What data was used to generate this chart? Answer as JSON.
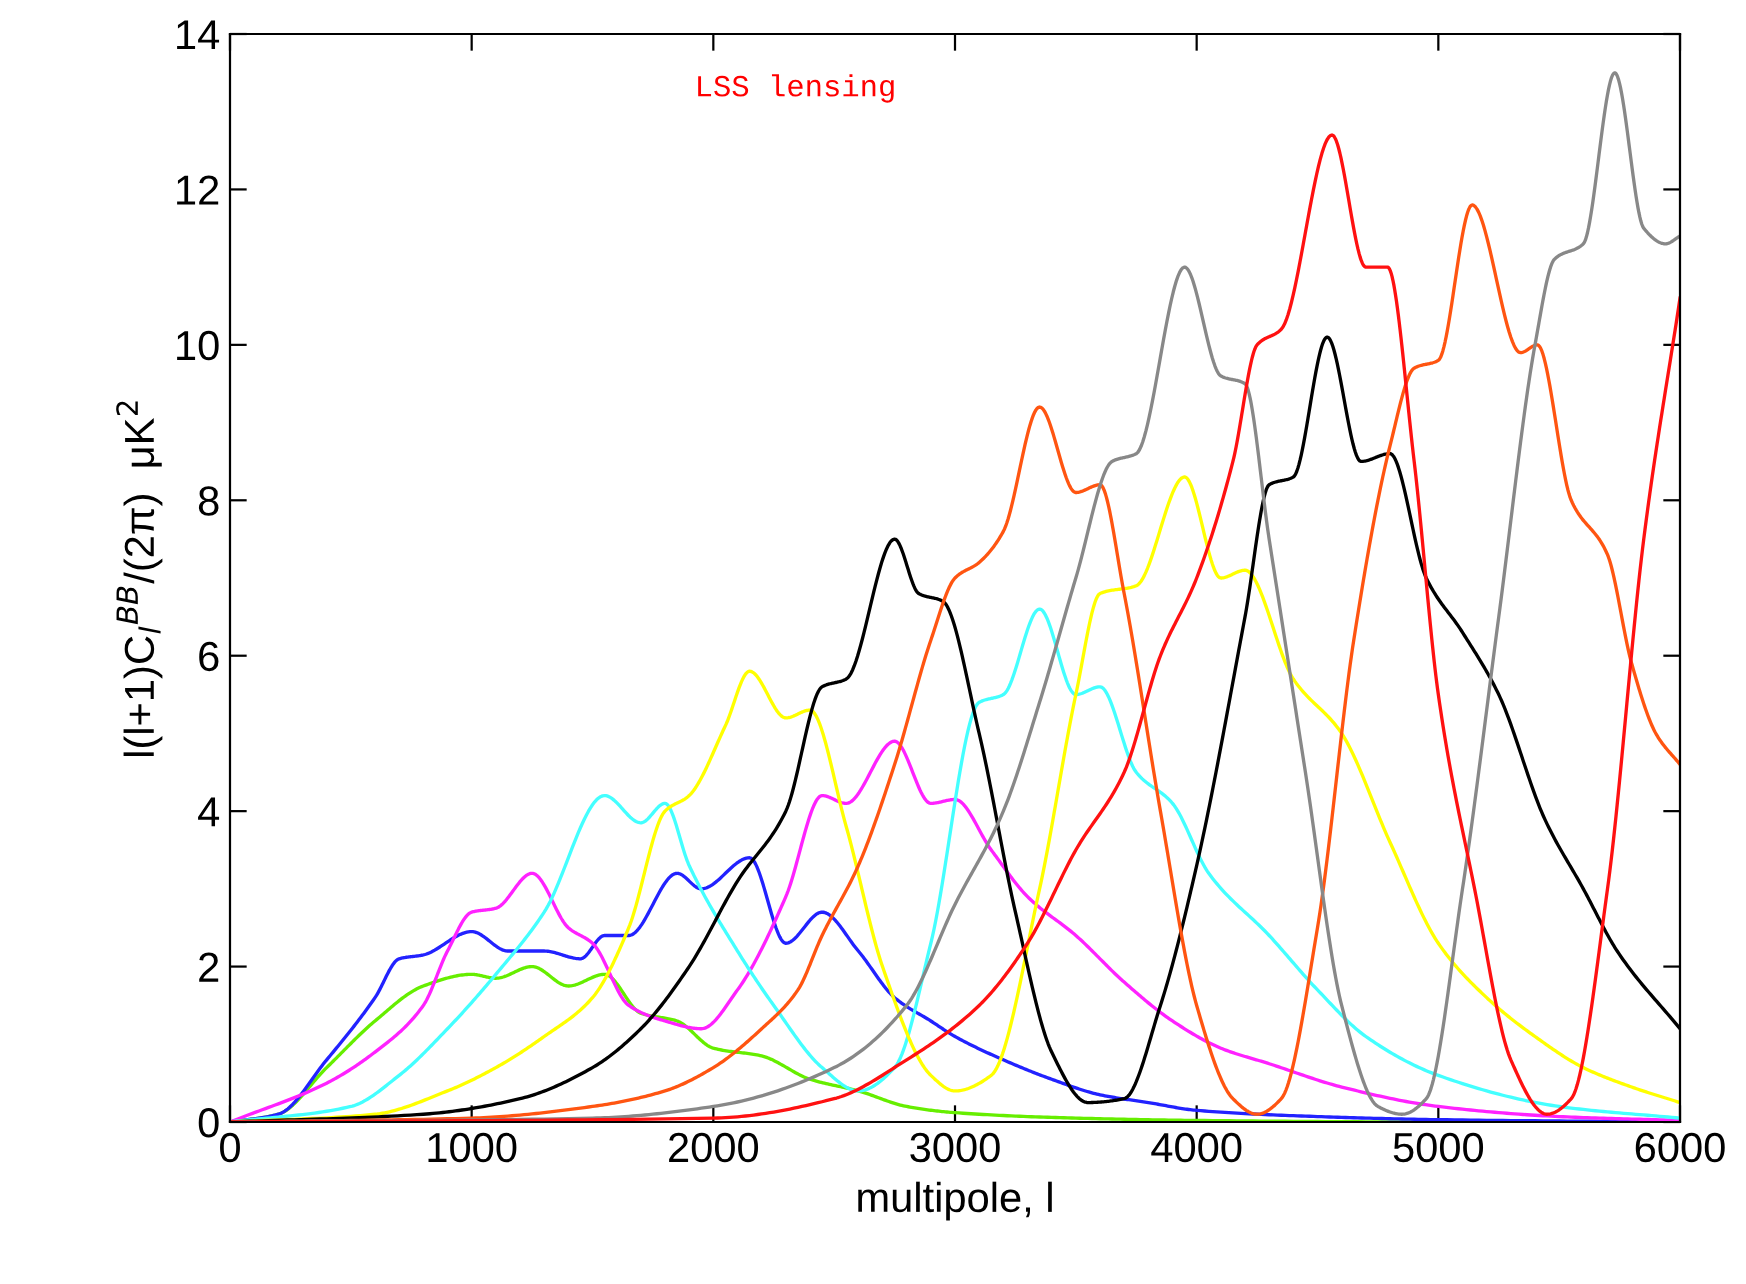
{
  "chart_data": {
    "type": "line",
    "xlabel": "multipole, l",
    "ylabel": "l(l+1)C$_{l}$$^{BB}$/(2π)  μK$^{2}$",
    "annotations": [
      "LSS lensing"
    ],
    "xlim": [
      0,
      6000
    ],
    "ylim": [
      0,
      14
    ],
    "xticks": [
      0,
      1000,
      2000,
      3000,
      4000,
      5000,
      6000
    ],
    "yticks": [
      0,
      2,
      4,
      6,
      8,
      10,
      12,
      14
    ],
    "grid": false,
    "legend": false,
    "series": [
      {
        "color": "#66ee00",
        "x": [
          0,
          200,
          400,
          600,
          800,
          1000,
          1100,
          1250,
          1400,
          1550,
          1700,
          1850,
          2000,
          2200,
          2400,
          2600,
          2800,
          3000,
          3500,
          4000,
          5000,
          6000
        ],
        "values": [
          0,
          0.1,
          0.7,
          1.3,
          1.75,
          1.9,
          1.85,
          2.0,
          1.75,
          1.9,
          1.4,
          1.3,
          0.95,
          0.85,
          0.55,
          0.4,
          0.2,
          0.12,
          0.05,
          0.02,
          0,
          0
        ]
      },
      {
        "color": "#2222ff",
        "x": [
          0,
          200,
          400,
          600,
          700,
          800,
          1000,
          1150,
          1300,
          1450,
          1550,
          1650,
          1850,
          1950,
          2150,
          2300,
          2450,
          2600,
          2750,
          2900,
          3000,
          3200,
          3400,
          3600,
          3800,
          4000,
          4500,
          5000,
          6000
        ],
        "values": [
          0,
          0.1,
          0.8,
          1.6,
          2.1,
          2.15,
          2.45,
          2.2,
          2.2,
          2.1,
          2.4,
          2.4,
          3.2,
          3.0,
          3.4,
          2.3,
          2.7,
          2.2,
          1.6,
          1.3,
          1.1,
          0.8,
          0.55,
          0.35,
          0.25,
          0.15,
          0.07,
          0.03,
          0
        ]
      },
      {
        "color": "#ff22ff",
        "x": [
          0,
          400,
          600,
          800,
          900,
          1000,
          1100,
          1250,
          1400,
          1500,
          1650,
          1800,
          1950,
          2100,
          2300,
          2450,
          2550,
          2750,
          2900,
          3000,
          3150,
          3300,
          3500,
          3700,
          3900,
          4100,
          4300,
          4600,
          5000,
          5500,
          6000
        ],
        "values": [
          0,
          0.5,
          0.9,
          1.5,
          2.2,
          2.7,
          2.75,
          3.2,
          2.5,
          2.3,
          1.5,
          1.3,
          1.2,
          1.7,
          2.9,
          4.2,
          4.1,
          4.9,
          4.1,
          4.15,
          3.5,
          2.9,
          2.4,
          1.8,
          1.3,
          0.95,
          0.75,
          0.45,
          0.2,
          0.07,
          0.02
        ]
      },
      {
        "color": "#44ffff",
        "x": [
          0,
          500,
          700,
          900,
          1100,
          1300,
          1550,
          1700,
          1800,
          1900,
          2100,
          2250,
          2450,
          2600,
          2750,
          2900,
          3100,
          3200,
          3350,
          3500,
          3600,
          3750,
          3900,
          4050,
          4300,
          4500,
          4700,
          5000,
          5500,
          6000
        ],
        "values": [
          0,
          0.2,
          0.6,
          1.2,
          1.9,
          2.7,
          4.2,
          3.85,
          4.1,
          3.3,
          2.2,
          1.5,
          0.7,
          0.4,
          0.7,
          2.3,
          5.4,
          5.5,
          6.6,
          5.5,
          5.6,
          4.5,
          4.1,
          3.2,
          2.4,
          1.7,
          1.1,
          0.6,
          0.2,
          0.05
        ]
      },
      {
        "color": "#ffff00",
        "x": [
          0,
          600,
          900,
          1100,
          1300,
          1500,
          1650,
          1800,
          1900,
          2050,
          2150,
          2300,
          2400,
          2550,
          2700,
          2900,
          3000,
          3150,
          3350,
          3500,
          3600,
          3750,
          3950,
          4100,
          4200,
          4400,
          4600,
          4800,
          5000,
          5200,
          5400,
          5600,
          5800,
          6000
        ],
        "values": [
          0,
          0.1,
          0.4,
          0.7,
          1.1,
          1.6,
          2.5,
          4.0,
          4.2,
          5.1,
          5.8,
          5.2,
          5.3,
          3.8,
          2.0,
          0.6,
          0.4,
          0.6,
          3.0,
          5.5,
          6.8,
          6.9,
          8.3,
          7.0,
          7.1,
          5.7,
          5.0,
          3.6,
          2.3,
          1.6,
          1.1,
          0.7,
          0.45,
          0.25
        ]
      },
      {
        "color": "#000000",
        "x": [
          0,
          800,
          1200,
          1500,
          1700,
          1900,
          2100,
          2300,
          2450,
          2550,
          2750,
          2850,
          2950,
          3100,
          3250,
          3400,
          3550,
          3700,
          3850,
          4000,
          4200,
          4300,
          4400,
          4540,
          4680,
          4800,
          4950,
          5100,
          5250,
          5440,
          5600,
          5740,
          6000
        ],
        "values": [
          0,
          0.1,
          0.3,
          0.7,
          1.2,
          2.0,
          3.1,
          4.0,
          5.6,
          5.7,
          7.5,
          6.8,
          6.7,
          5.0,
          2.7,
          0.9,
          0.25,
          0.3,
          1.5,
          3.3,
          6.5,
          8.2,
          8.3,
          10.1,
          8.5,
          8.6,
          7.0,
          6.3,
          5.5,
          3.9,
          3.0,
          2.2,
          1.2
        ]
      },
      {
        "color": "#ff5511",
        "x": [
          0,
          1000,
          1500,
          1800,
          2000,
          2200,
          2350,
          2450,
          2600,
          2750,
          2900,
          3000,
          3100,
          3200,
          3350,
          3500,
          3600,
          3700,
          3850,
          4000,
          4150,
          4250,
          4350,
          4500,
          4650,
          4800,
          4900,
          5000,
          5140,
          5340,
          5410,
          5550,
          5700,
          5800,
          5900,
          6000
        ],
        "values": [
          0,
          0.05,
          0.2,
          0.4,
          0.7,
          1.2,
          1.7,
          2.4,
          3.3,
          4.6,
          6.2,
          7.0,
          7.2,
          7.6,
          9.2,
          8.1,
          8.2,
          6.8,
          4.0,
          1.5,
          0.3,
          0.1,
          0.3,
          2.5,
          6.2,
          8.7,
          9.7,
          9.8,
          11.8,
          9.9,
          10.0,
          8.0,
          7.3,
          5.9,
          5.0,
          4.6
        ]
      },
      {
        "color": "#888888",
        "x": [
          0,
          1500,
          2000,
          2500,
          2800,
          3000,
          3200,
          3350,
          3500,
          3650,
          3750,
          3950,
          4100,
          4200,
          4300,
          4450,
          4600,
          4750,
          4850,
          4950,
          5100,
          5250,
          5400,
          5480,
          5600,
          5730,
          5850,
          5940,
          6000
        ],
        "values": [
          0,
          0.05,
          0.2,
          0.7,
          1.5,
          2.8,
          4.0,
          5.4,
          7.0,
          8.5,
          8.6,
          11.0,
          9.6,
          9.5,
          7.5,
          4.5,
          1.5,
          0.2,
          0.1,
          0.3,
          3.0,
          6.5,
          10.0,
          11.1,
          11.3,
          13.5,
          11.5,
          11.3,
          11.4
        ]
      },
      {
        "color": "#ff1111",
        "x": [
          0,
          2000,
          2500,
          2800,
          3100,
          3300,
          3500,
          3700,
          3850,
          4000,
          4150,
          4250,
          4350,
          4560,
          4700,
          4790,
          4900,
          5000,
          5150,
          5300,
          5450,
          5550,
          5700,
          5850,
          6000
        ],
        "values": [
          0,
          0.05,
          0.3,
          0.8,
          1.5,
          2.3,
          3.5,
          4.5,
          6.0,
          7.0,
          8.5,
          10.0,
          10.2,
          12.7,
          11.0,
          11.0,
          8.5,
          5.5,
          3.0,
          0.8,
          0.1,
          0.3,
          3.0,
          7.5,
          10.6
        ]
      }
    ]
  }
}
